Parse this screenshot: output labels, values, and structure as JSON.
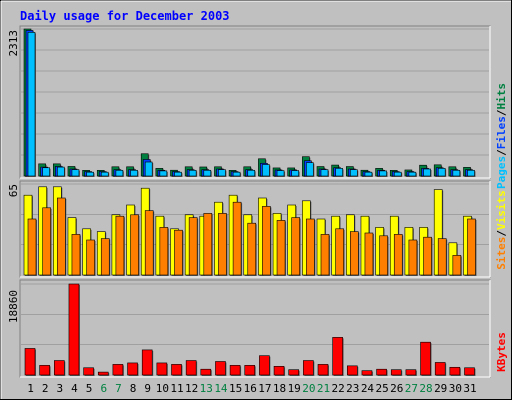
{
  "title": "Daily usage for December 2003",
  "legend": {
    "hits": "Hits",
    "files": "Files",
    "pages": "Pages",
    "visits": "Visits",
    "sites": "Sites",
    "kbytes": "KBytes",
    "slash": "/"
  },
  "colors": {
    "hits": "#008040",
    "files": "#0040ff",
    "pages": "#00c0ff",
    "visits": "#ffff00",
    "sites": "#ff8000",
    "kbytes": "#ff0000",
    "title": "#0000ff",
    "background": "#c0c0c0",
    "weekend": "#008040"
  },
  "chart_data": [
    {
      "type": "bar",
      "panel": "hits-files-pages",
      "ymax_label": "2313",
      "ylim": [
        0,
        2313
      ],
      "categories": [
        "1",
        "2",
        "3",
        "4",
        "5",
        "6",
        "7",
        "8",
        "9",
        "10",
        "11",
        "12",
        "13",
        "14",
        "15",
        "16",
        "17",
        "18",
        "19",
        "20",
        "21",
        "22",
        "23",
        "24",
        "25",
        "26",
        "27",
        "28",
        "29",
        "30",
        "31"
      ],
      "weekend_days": [
        "6",
        "7",
        "13",
        "14",
        "20",
        "21",
        "27",
        "28"
      ],
      "series": [
        {
          "name": "Hits",
          "values": [
            2313,
            191,
            191,
            150,
            89,
            89,
            145,
            145,
            350,
            120,
            91,
            145,
            142,
            145,
            89,
            145,
            271,
            127,
            127,
            304,
            149,
            172,
            149,
            91,
            120,
            89,
            95,
            170,
            176,
            145,
            136
          ]
        },
        {
          "name": "Files",
          "values": [
            2290,
            140,
            150,
            110,
            70,
            70,
            100,
            100,
            260,
            90,
            70,
            100,
            100,
            110,
            70,
            100,
            200,
            95,
            95,
            240,
            110,
            130,
            110,
            70,
            90,
            70,
            70,
            120,
            130,
            100,
            100
          ]
        },
        {
          "name": "Pages",
          "values": [
            2260,
            130,
            140,
            100,
            60,
            60,
            90,
            90,
            220,
            80,
            60,
            90,
            90,
            100,
            60,
            90,
            180,
            85,
            85,
            210,
            100,
            120,
            100,
            60,
            80,
            60,
            60,
            110,
            120,
            90,
            90
          ]
        }
      ]
    },
    {
      "type": "bar",
      "panel": "visits-sites",
      "ymax_label": "65",
      "ylim": [
        0,
        65
      ],
      "categories": [
        "1",
        "2",
        "3",
        "4",
        "5",
        "6",
        "7",
        "8",
        "9",
        "10",
        "11",
        "12",
        "13",
        "14",
        "15",
        "16",
        "17",
        "18",
        "19",
        "20",
        "21",
        "22",
        "23",
        "24",
        "25",
        "26",
        "27",
        "28",
        "29",
        "30",
        "31"
      ],
      "series": [
        {
          "name": "Visits",
          "values": [
            57,
            63,
            63,
            41,
            33,
            31,
            43,
            50,
            62,
            42,
            33,
            43,
            42,
            52,
            57,
            43,
            55,
            44,
            50,
            53,
            40,
            42,
            43,
            42,
            34,
            42,
            34,
            34,
            61,
            23,
            42
          ]
        },
        {
          "name": "Sites",
          "values": [
            40,
            48,
            55,
            29,
            25,
            26,
            42,
            43,
            46,
            34,
            32,
            41,
            44,
            44,
            52,
            37,
            49,
            39,
            41,
            40,
            29,
            33,
            31,
            30,
            28,
            29,
            25,
            27,
            26,
            14,
            40
          ]
        }
      ]
    },
    {
      "type": "bar",
      "panel": "kbytes",
      "ymax_label": "18860",
      "ylim": [
        0,
        18860
      ],
      "categories": [
        "1",
        "2",
        "3",
        "4",
        "5",
        "6",
        "7",
        "8",
        "9",
        "10",
        "11",
        "12",
        "13",
        "14",
        "15",
        "16",
        "17",
        "18",
        "19",
        "20",
        "21",
        "22",
        "23",
        "24",
        "25",
        "26",
        "27",
        "28",
        "29",
        "30",
        "31"
      ],
      "series": [
        {
          "name": "KBytes",
          "values": [
            5500,
            2000,
            3000,
            18860,
            1500,
            600,
            2200,
            2500,
            5200,
            2500,
            2200,
            3000,
            1200,
            2800,
            2000,
            2000,
            4000,
            1800,
            1100,
            3000,
            2200,
            7800,
            1900,
            900,
            1200,
            1100,
            1100,
            6800,
            2600,
            1600,
            1500
          ]
        }
      ]
    }
  ]
}
